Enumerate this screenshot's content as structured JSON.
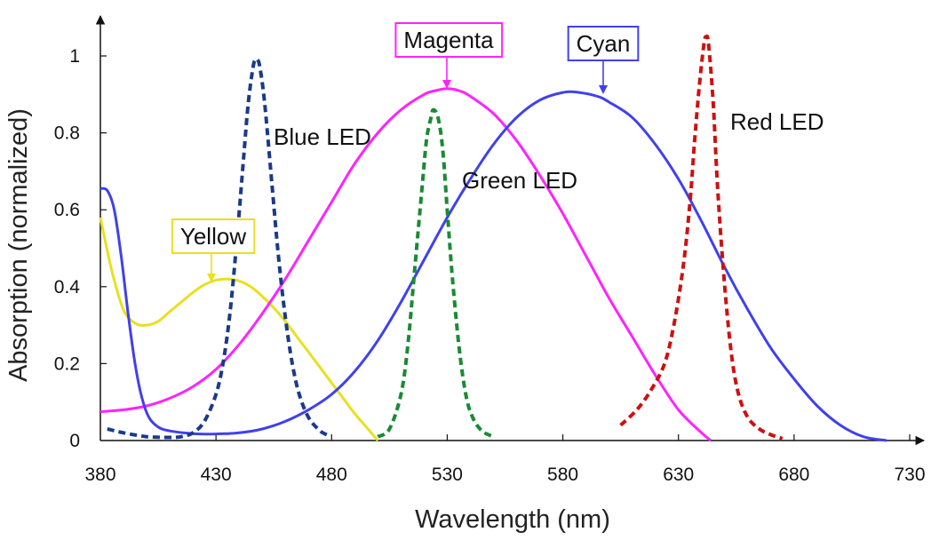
{
  "chart_data": {
    "type": "line",
    "xlabel": "Wavelength (nm)",
    "ylabel": "Absorption (normalized)",
    "xlim": [
      380,
      730
    ],
    "ylim": [
      0,
      1.05
    ],
    "x_ticks": [
      "380",
      "430",
      "480",
      "530",
      "580",
      "630",
      "680",
      "730"
    ],
    "y_ticks": [
      "0",
      "0.2",
      "0.4",
      "0.6",
      "0.8",
      "1"
    ],
    "grid": false,
    "series": [
      {
        "name": "Yellow",
        "color": "#e8e020",
        "style": "solid",
        "boxed_label": true,
        "points": [
          [
            380,
            0.58
          ],
          [
            385,
            0.44
          ],
          [
            390,
            0.34
          ],
          [
            395,
            0.305
          ],
          [
            400,
            0.3
          ],
          [
            405,
            0.31
          ],
          [
            410,
            0.335
          ],
          [
            415,
            0.36
          ],
          [
            420,
            0.385
          ],
          [
            425,
            0.405
          ],
          [
            430,
            0.417
          ],
          [
            435,
            0.42
          ],
          [
            440,
            0.415
          ],
          [
            445,
            0.4
          ],
          [
            450,
            0.375
          ],
          [
            455,
            0.345
          ],
          [
            460,
            0.31
          ],
          [
            465,
            0.27
          ],
          [
            470,
            0.23
          ],
          [
            475,
            0.19
          ],
          [
            480,
            0.15
          ],
          [
            485,
            0.11
          ],
          [
            490,
            0.07
          ],
          [
            495,
            0.035
          ],
          [
            500,
            0.0
          ]
        ]
      },
      {
        "name": "Blue LED",
        "color": "#1a3a8a",
        "style": "dashed",
        "boxed_label": false,
        "points": [
          [
            383,
            0.03
          ],
          [
            390,
            0.02
          ],
          [
            400,
            0.01
          ],
          [
            410,
            0.008
          ],
          [
            415,
            0.01
          ],
          [
            420,
            0.02
          ],
          [
            425,
            0.05
          ],
          [
            430,
            0.12
          ],
          [
            433,
            0.2
          ],
          [
            436,
            0.33
          ],
          [
            439,
            0.52
          ],
          [
            442,
            0.74
          ],
          [
            444,
            0.88
          ],
          [
            446,
            0.97
          ],
          [
            447,
            0.99
          ],
          [
            448,
            0.99
          ],
          [
            449,
            0.97
          ],
          [
            451,
            0.88
          ],
          [
            454,
            0.68
          ],
          [
            457,
            0.48
          ],
          [
            460,
            0.32
          ],
          [
            463,
            0.2
          ],
          [
            466,
            0.12
          ],
          [
            470,
            0.06
          ],
          [
            475,
            0.025
          ],
          [
            478,
            0.015
          ]
        ]
      },
      {
        "name": "Magenta",
        "color": "#ff22ff",
        "style": "solid",
        "boxed_label": true,
        "points": [
          [
            380,
            0.075
          ],
          [
            390,
            0.08
          ],
          [
            400,
            0.09
          ],
          [
            410,
            0.11
          ],
          [
            420,
            0.14
          ],
          [
            430,
            0.185
          ],
          [
            440,
            0.25
          ],
          [
            450,
            0.33
          ],
          [
            460,
            0.42
          ],
          [
            470,
            0.52
          ],
          [
            480,
            0.62
          ],
          [
            490,
            0.72
          ],
          [
            500,
            0.8
          ],
          [
            510,
            0.86
          ],
          [
            520,
            0.9
          ],
          [
            525,
            0.91
          ],
          [
            530,
            0.915
          ],
          [
            535,
            0.91
          ],
          [
            540,
            0.895
          ],
          [
            550,
            0.85
          ],
          [
            560,
            0.78
          ],
          [
            570,
            0.69
          ],
          [
            580,
            0.59
          ],
          [
            590,
            0.48
          ],
          [
            600,
            0.37
          ],
          [
            610,
            0.27
          ],
          [
            620,
            0.17
          ],
          [
            630,
            0.08
          ],
          [
            640,
            0.02
          ],
          [
            644,
            0.0
          ]
        ]
      },
      {
        "name": "Green LED",
        "color": "#1a8a35",
        "style": "dashed",
        "boxed_label": false,
        "points": [
          [
            500,
            0.01
          ],
          [
            505,
            0.03
          ],
          [
            510,
            0.12
          ],
          [
            513,
            0.25
          ],
          [
            516,
            0.45
          ],
          [
            519,
            0.65
          ],
          [
            521,
            0.78
          ],
          [
            523,
            0.84
          ],
          [
            524,
            0.86
          ],
          [
            526,
            0.84
          ],
          [
            528,
            0.76
          ],
          [
            530,
            0.6
          ],
          [
            532,
            0.44
          ],
          [
            535,
            0.25
          ],
          [
            538,
            0.12
          ],
          [
            541,
            0.06
          ],
          [
            545,
            0.025
          ],
          [
            550,
            0.01
          ]
        ]
      },
      {
        "name": "Cyan",
        "color": "#4040ee",
        "style": "solid",
        "boxed_label": true,
        "points": [
          [
            380,
            0.655
          ],
          [
            383,
            0.65
          ],
          [
            386,
            0.6
          ],
          [
            389,
            0.48
          ],
          [
            392,
            0.33
          ],
          [
            395,
            0.2
          ],
          [
            398,
            0.11
          ],
          [
            401,
            0.06
          ],
          [
            405,
            0.035
          ],
          [
            410,
            0.025
          ],
          [
            420,
            0.018
          ],
          [
            430,
            0.017
          ],
          [
            440,
            0.02
          ],
          [
            450,
            0.03
          ],
          [
            460,
            0.05
          ],
          [
            470,
            0.08
          ],
          [
            480,
            0.12
          ],
          [
            490,
            0.18
          ],
          [
            500,
            0.26
          ],
          [
            510,
            0.36
          ],
          [
            520,
            0.47
          ],
          [
            530,
            0.58
          ],
          [
            540,
            0.68
          ],
          [
            550,
            0.77
          ],
          [
            560,
            0.84
          ],
          [
            570,
            0.885
          ],
          [
            580,
            0.905
          ],
          [
            587,
            0.905
          ],
          [
            595,
            0.895
          ],
          [
            600,
            0.88
          ],
          [
            610,
            0.84
          ],
          [
            620,
            0.77
          ],
          [
            630,
            0.68
          ],
          [
            640,
            0.57
          ],
          [
            650,
            0.45
          ],
          [
            660,
            0.34
          ],
          [
            670,
            0.24
          ],
          [
            680,
            0.16
          ],
          [
            690,
            0.09
          ],
          [
            700,
            0.04
          ],
          [
            710,
            0.01
          ],
          [
            720,
            0.0
          ]
        ]
      },
      {
        "name": "Red LED",
        "color": "#cc1111",
        "style": "dashed",
        "boxed_label": false,
        "points": [
          [
            605,
            0.04
          ],
          [
            612,
            0.08
          ],
          [
            618,
            0.13
          ],
          [
            624,
            0.2
          ],
          [
            628,
            0.3
          ],
          [
            632,
            0.45
          ],
          [
            635,
            0.62
          ],
          [
            637,
            0.78
          ],
          [
            639,
            0.92
          ],
          [
            641,
            1.03
          ],
          [
            642,
            1.05
          ],
          [
            643,
            1.03
          ],
          [
            645,
            0.88
          ],
          [
            647,
            0.65
          ],
          [
            650,
            0.4
          ],
          [
            653,
            0.22
          ],
          [
            656,
            0.12
          ],
          [
            660,
            0.06
          ],
          [
            665,
            0.03
          ],
          [
            670,
            0.015
          ],
          [
            675,
            0.005
          ]
        ]
      }
    ]
  }
}
